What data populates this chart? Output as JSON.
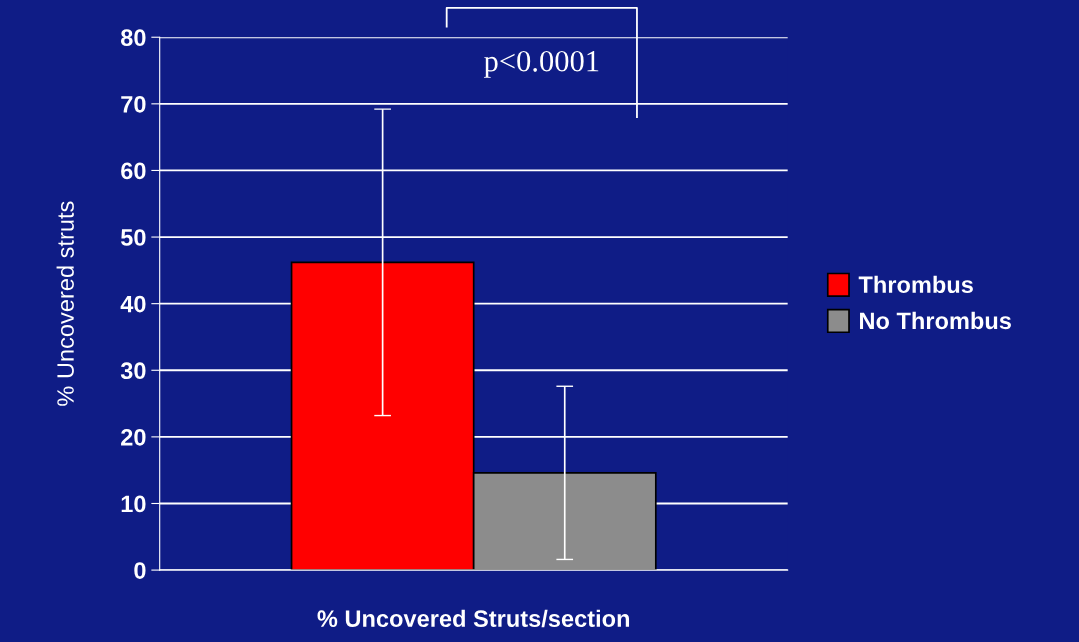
{
  "chart_data": {
    "type": "bar",
    "categories": [
      null
    ],
    "xlabel": "% Uncovered Struts/section",
    "ylabel": "% Uncovered struts",
    "series": [
      {
        "name": "Thrombus",
        "color": "#ff0000",
        "values": [
          46.2
        ],
        "errors": [
          23
        ]
      },
      {
        "name": "No Thrombus",
        "color": "#8c8c8c",
        "values": [
          14.6
        ],
        "errors": [
          13
        ]
      }
    ],
    "ylim": [
      0,
      80
    ],
    "yticks": [
      0,
      10,
      20,
      30,
      40,
      50,
      60,
      70,
      80
    ],
    "grid": "y",
    "legend": "right",
    "annotations": [
      "p<0.0001"
    ]
  }
}
